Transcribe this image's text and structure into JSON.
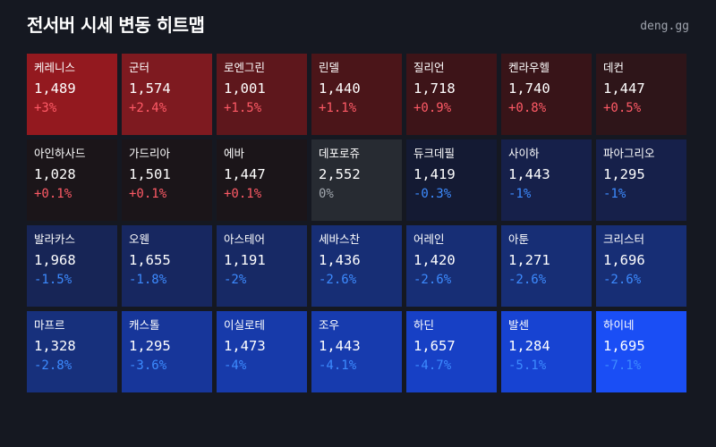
{
  "header": {
    "title": "전서버 시세 변동 히트맵",
    "brand": "deng.gg"
  },
  "cells": [
    {
      "name": "케레니스",
      "price": "1,489",
      "change": "+3%",
      "dir": "up",
      "bg": "#93191f"
    },
    {
      "name": "군터",
      "price": "1,574",
      "change": "+2.4%",
      "dir": "up",
      "bg": "#7e1a20"
    },
    {
      "name": "로엔그린",
      "price": "1,001",
      "change": "+1.5%",
      "dir": "up",
      "bg": "#5e171c"
    },
    {
      "name": "린델",
      "price": "1,440",
      "change": "+1.1%",
      "dir": "up",
      "bg": "#4b1519"
    },
    {
      "name": "질리언",
      "price": "1,718",
      "change": "+0.9%",
      "dir": "up",
      "bg": "#3d1418"
    },
    {
      "name": "켄라우헬",
      "price": "1,740",
      "change": "+0.8%",
      "dir": "up",
      "bg": "#381418"
    },
    {
      "name": "데컨",
      "price": "1,447",
      "change": "+0.5%",
      "dir": "up",
      "bg": "#2e1519"
    },
    {
      "name": "아인하사드",
      "price": "1,028",
      "change": "+0.1%",
      "dir": "up",
      "bg": "#1b1519"
    },
    {
      "name": "가드리아",
      "price": "1,501",
      "change": "+0.1%",
      "dir": "up",
      "bg": "#1b1519"
    },
    {
      "name": "에바",
      "price": "1,447",
      "change": "+0.1%",
      "dir": "up",
      "bg": "#1b1519"
    },
    {
      "name": "데포로쥬",
      "price": "2,552",
      "change": "0%",
      "dir": "flat",
      "bg": "#272b32"
    },
    {
      "name": "듀크데필",
      "price": "1,419",
      "change": "-0.3%",
      "dir": "down",
      "bg": "#141a33"
    },
    {
      "name": "사이하",
      "price": "1,443",
      "change": "-1%",
      "dir": "down",
      "bg": "#16204a"
    },
    {
      "name": "파아그리오",
      "price": "1,295",
      "change": "-1%",
      "dir": "down",
      "bg": "#16204a"
    },
    {
      "name": "발라카스",
      "price": "1,968",
      "change": "-1.5%",
      "dir": "down",
      "bg": "#172556"
    },
    {
      "name": "오웬",
      "price": "1,655",
      "change": "-1.8%",
      "dir": "down",
      "bg": "#172760"
    },
    {
      "name": "아스테어",
      "price": "1,191",
      "change": "-2%",
      "dir": "down",
      "bg": "#172965"
    },
    {
      "name": "세바스찬",
      "price": "1,436",
      "change": "-2.6%",
      "dir": "down",
      "bg": "#172e75"
    },
    {
      "name": "어레인",
      "price": "1,420",
      "change": "-2.6%",
      "dir": "down",
      "bg": "#172e75"
    },
    {
      "name": "아툰",
      "price": "1,271",
      "change": "-2.6%",
      "dir": "down",
      "bg": "#172e75"
    },
    {
      "name": "크리스터",
      "price": "1,696",
      "change": "-2.6%",
      "dir": "down",
      "bg": "#172e75"
    },
    {
      "name": "마프르",
      "price": "1,328",
      "change": "-2.8%",
      "dir": "down",
      "bg": "#17307c"
    },
    {
      "name": "캐스톨",
      "price": "1,295",
      "change": "-3.6%",
      "dir": "down",
      "bg": "#17369a"
    },
    {
      "name": "이실로테",
      "price": "1,473",
      "change": "-4%",
      "dir": "down",
      "bg": "#173aaa"
    },
    {
      "name": "조우",
      "price": "1,443",
      "change": "-4.1%",
      "dir": "down",
      "bg": "#173bae"
    },
    {
      "name": "하딘",
      "price": "1,657",
      "change": "-4.7%",
      "dir": "down",
      "bg": "#1740c5"
    },
    {
      "name": "발센",
      "price": "1,284",
      "change": "-5.1%",
      "dir": "down",
      "bg": "#1743d2"
    },
    {
      "name": "하이네",
      "price": "1,695",
      "change": "-7.1%",
      "dir": "down",
      "bg": "#1a4ef5"
    }
  ]
}
